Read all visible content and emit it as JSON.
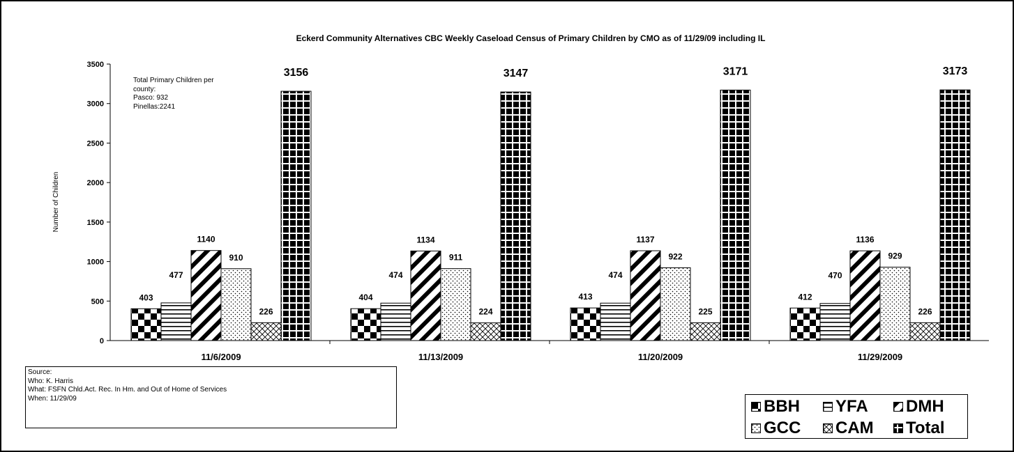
{
  "chart_data": {
    "type": "bar",
    "title": "Eckerd Community Alternatives CBC  Weekly Caseload Census of Primary Children by CMO as of  11/29/09 including IL",
    "xlabel": "",
    "ylabel": "Number of Children",
    "ylim": [
      0,
      3500
    ],
    "yticks": [
      "0",
      "500",
      "1000",
      "1500",
      "2000",
      "2500",
      "3000",
      "3500"
    ],
    "grid": false,
    "legend_position": "bottom-right",
    "categories": [
      "11/6/2009",
      "11/13/2009",
      "11/20/2009",
      "11/29/2009"
    ],
    "series": [
      {
        "name": "BBH",
        "pattern": "checkerboard",
        "values": [
          403,
          404,
          413,
          412
        ]
      },
      {
        "name": "YFA",
        "pattern": "horizontal-lines",
        "values": [
          477,
          474,
          474,
          470
        ]
      },
      {
        "name": "DMH",
        "pattern": "wide-diagonal-stripes",
        "values": [
          1140,
          1134,
          1137,
          1136
        ]
      },
      {
        "name": "GCC",
        "pattern": "dotted",
        "values": [
          910,
          911,
          922,
          929
        ]
      },
      {
        "name": "CAM",
        "pattern": "diagonal-crosshatch",
        "values": [
          226,
          224,
          225,
          226
        ]
      },
      {
        "name": "Total",
        "pattern": "black-grid",
        "values": [
          3156,
          3147,
          3171,
          3173
        ]
      }
    ],
    "colors": {
      "ink": "#000000",
      "fill": "#ffffff"
    }
  },
  "note": {
    "lines": [
      "Total Primary Children per",
      "county:",
      "Pasco: 932",
      "Pinellas:2241"
    ]
  },
  "source_box": {
    "lines": [
      "Source:",
      "Who: K. Harris",
      "What: FSFN Chld.Act. Rec. In Hm. and Out of Home of Services",
      "When: 11/29/09"
    ]
  }
}
